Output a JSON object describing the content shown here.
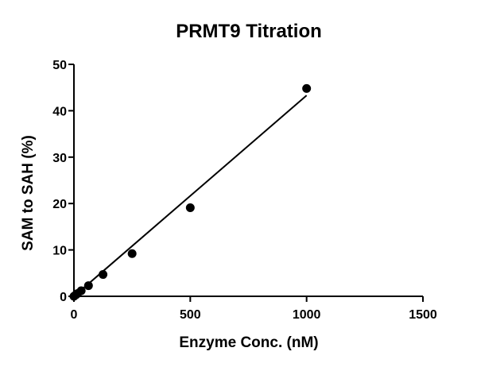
{
  "chart_data": {
    "type": "scatter",
    "title": "PRMT9 Titration",
    "xlabel": "Enzyme Conc. (nM)",
    "ylabel": "SAM to SAH (%)",
    "xlim": [
      0,
      1500
    ],
    "ylim": [
      0,
      50
    ],
    "xticks": [
      0,
      500,
      1000,
      1500
    ],
    "yticks": [
      0,
      10,
      20,
      30,
      40,
      50
    ],
    "grid": false,
    "legend": "none",
    "series": [
      {
        "x": [
          0,
          7.8,
          15.6,
          31.25,
          62.5,
          125,
          250,
          500,
          1000
        ],
        "y": [
          0,
          0.3,
          0.6,
          1.2,
          2.3,
          4.7,
          9.2,
          19.1,
          44.8
        ]
      }
    ],
    "fit_line": {
      "x": [
        0,
        1000
      ],
      "y": [
        0,
        43.3
      ]
    }
  }
}
